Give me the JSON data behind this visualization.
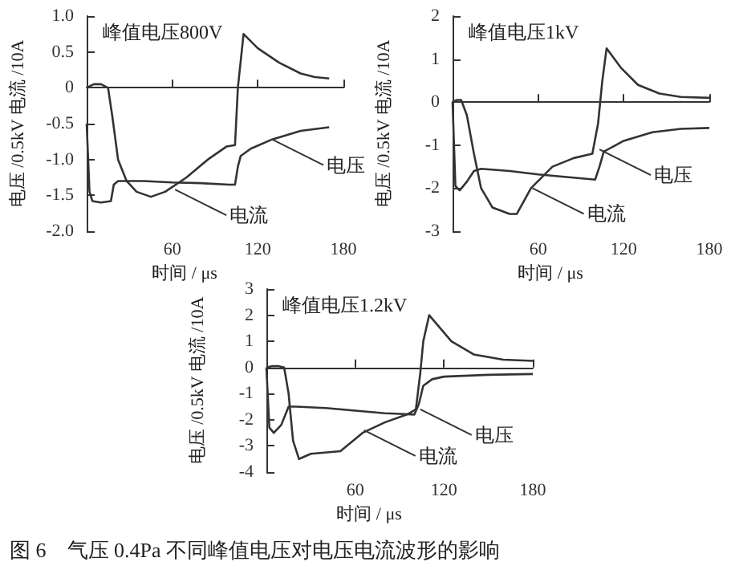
{
  "chart_data": [
    {
      "type": "line",
      "title": "峰值电压800V",
      "xlabel": "时间 / μs",
      "ylabel": "电压 /0.5kV 电流 /10A",
      "xlim": [
        0,
        180
      ],
      "xticks": [
        60,
        120,
        180
      ],
      "ylim": [
        -2,
        1
      ],
      "yticks": [
        {
          "value": -2,
          "label": "-2.0"
        },
        -1.5,
        {
          "value": -1,
          "label": "-1.0"
        },
        -0.5,
        0,
        0.5,
        {
          "value": 1,
          "label": "1.0"
        }
      ],
      "marker": "none",
      "line_style": "solid",
      "annotations": [
        {
          "text": "电压",
          "x": 130,
          "y": -0.72
        },
        {
          "text": "电流",
          "x": 62,
          "y": -1.42
        }
      ],
      "series": [
        {
          "color": "#333333",
          "x": [
            0,
            2,
            4,
            10,
            17,
            19,
            22,
            40,
            60,
            80,
            100,
            104,
            106,
            108,
            115,
            130,
            150,
            170
          ],
          "values": [
            -0.5,
            -1.45,
            -1.58,
            -1.6,
            -1.58,
            -1.35,
            -1.3,
            -1.3,
            -1.32,
            -1.33,
            -1.35,
            -1.35,
            -1.1,
            -0.95,
            -0.85,
            -0.72,
            -0.6,
            -0.55
          ]
        },
        {
          "color": "#333333",
          "x": [
            0,
            5,
            10,
            15,
            18,
            22,
            28,
            35,
            45,
            55,
            70,
            85,
            98,
            104,
            106,
            110,
            120,
            135,
            150,
            160,
            170
          ],
          "values": [
            0,
            0.05,
            0.05,
            0,
            -0.4,
            -1,
            -1.3,
            -1.45,
            -1.52,
            -1.45,
            -1.25,
            -1,
            -0.82,
            -0.8,
            0,
            0.75,
            0.55,
            0.35,
            0.2,
            0.15,
            0.13
          ]
        }
      ]
    },
    {
      "type": "line",
      "title": "峰值电压1kV",
      "xlabel": "时间 / μs",
      "ylabel": "电压 /0.5kV 电流 /10A",
      "xlim": [
        0,
        180
      ],
      "xticks": [
        60,
        120,
        180
      ],
      "ylim": [
        -3,
        2
      ],
      "yticks": [
        -3,
        -2,
        -1,
        0,
        1,
        2
      ],
      "marker": "none",
      "line_style": "solid",
      "annotations": [
        {
          "text": "电压",
          "x": 103,
          "y": -1.1
        },
        {
          "text": "电流",
          "x": 56,
          "y": -2
        }
      ],
      "series": [
        {
          "color": "#333333",
          "x": [
            0,
            2,
            5,
            10,
            15,
            20,
            40,
            60,
            80,
            100,
            103,
            106,
            120,
            140,
            160,
            180
          ],
          "values": [
            0,
            -1.95,
            -2.05,
            -1.85,
            -1.6,
            -1.55,
            -1.6,
            -1.68,
            -1.74,
            -1.8,
            -1.5,
            -1.15,
            -0.9,
            -0.7,
            -0.62,
            -0.6
          ]
        },
        {
          "color": "#333333",
          "x": [
            0,
            3,
            6,
            10,
            15,
            20,
            28,
            40,
            45,
            55,
            70,
            85,
            98,
            102,
            105,
            108,
            118,
            130,
            145,
            160,
            180
          ],
          "values": [
            0,
            0.05,
            0.05,
            -0.3,
            -1.2,
            -2,
            -2.45,
            -2.6,
            -2.6,
            -2,
            -1.5,
            -1.3,
            -1.2,
            -0.5,
            0.5,
            1.25,
            0.8,
            0.4,
            0.2,
            0.12,
            0.1
          ]
        }
      ]
    },
    {
      "type": "line",
      "title": "峰值电压1.2kV",
      "xlabel": "时间 / μs",
      "ylabel": "电压 /0.5kV 电流 /10A",
      "xlim": [
        0,
        180
      ],
      "xticks": [
        60,
        120,
        180
      ],
      "ylim": [
        -4,
        3
      ],
      "yticks": [
        -4,
        -3,
        -2,
        -1,
        0,
        1,
        2,
        3
      ],
      "marker": "none",
      "line_style": "solid",
      "annotations": [
        {
          "text": "电压",
          "x": 104,
          "y": -1.6
        },
        {
          "text": "电流",
          "x": 66,
          "y": -2.4
        },
        "图 6　气压 0.4Pa 不同峰值电压对电压电流波形的影响"
      ],
      "series": [
        {
          "color": "#333333",
          "x": [
            0,
            2,
            5,
            10,
            15,
            20,
            40,
            60,
            80,
            100,
            103,
            106,
            112,
            120,
            150,
            180
          ],
          "values": [
            0,
            -2.3,
            -2.5,
            -2.2,
            -1.5,
            -1.5,
            -1.55,
            -1.65,
            -1.75,
            -1.8,
            -1.4,
            -0.7,
            -0.45,
            -0.35,
            -0.28,
            -0.25
          ]
        },
        {
          "color": "#333333",
          "x": [
            0,
            4,
            8,
            12,
            15,
            18,
            22,
            30,
            50,
            65,
            80,
            95,
            101,
            104,
            106,
            110,
            125,
            140,
            160,
            180
          ],
          "values": [
            0,
            0.05,
            0.05,
            0,
            -1,
            -2.8,
            -3.5,
            -3.3,
            -3.2,
            -2.5,
            -2.1,
            -1.8,
            -1.6,
            -0.2,
            1,
            2,
            1,
            0.5,
            0.3,
            0.25
          ]
        }
      ]
    }
  ]
}
